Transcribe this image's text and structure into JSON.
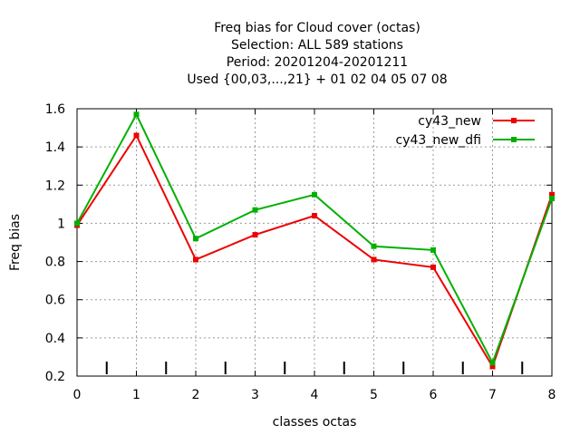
{
  "chart_data": {
    "type": "line",
    "title_lines": [
      "Freq bias  for Cloud cover (octas)",
      "Selection: ALL    589 stations",
      "Period: 20201204-20201211",
      "Used {00,03,...,21} + 01 02 04 05 07 08"
    ],
    "xlabel": "classes octas",
    "ylabel": "Freq bias",
    "xlim": [
      0,
      8
    ],
    "ylim": [
      0.2,
      1.6
    ],
    "xticks": [
      "0",
      "1",
      "2",
      "3",
      "4",
      "5",
      "6",
      "7",
      "8"
    ],
    "yticks": [
      "0.2",
      "0.4",
      "0.6",
      "0.8",
      "1",
      "1.2",
      "1.4",
      "1.6"
    ],
    "grid": true,
    "legend_position": "top-right",
    "x": [
      0,
      1,
      2,
      3,
      4,
      5,
      6,
      7,
      8
    ],
    "bottom_marks_x": [
      0.5,
      1.5,
      2.5,
      3.5,
      4.5,
      5.5,
      6.5,
      7.5
    ],
    "series": [
      {
        "name": "cy43_new",
        "color": "#ee0000",
        "values": [
          0.99,
          1.46,
          0.81,
          0.94,
          1.04,
          0.81,
          0.77,
          0.25,
          1.15
        ]
      },
      {
        "name": "cy43_new_dfi",
        "color": "#00b000",
        "values": [
          1.0,
          1.57,
          0.92,
          1.07,
          1.15,
          0.88,
          0.86,
          0.27,
          1.13
        ]
      }
    ]
  }
}
